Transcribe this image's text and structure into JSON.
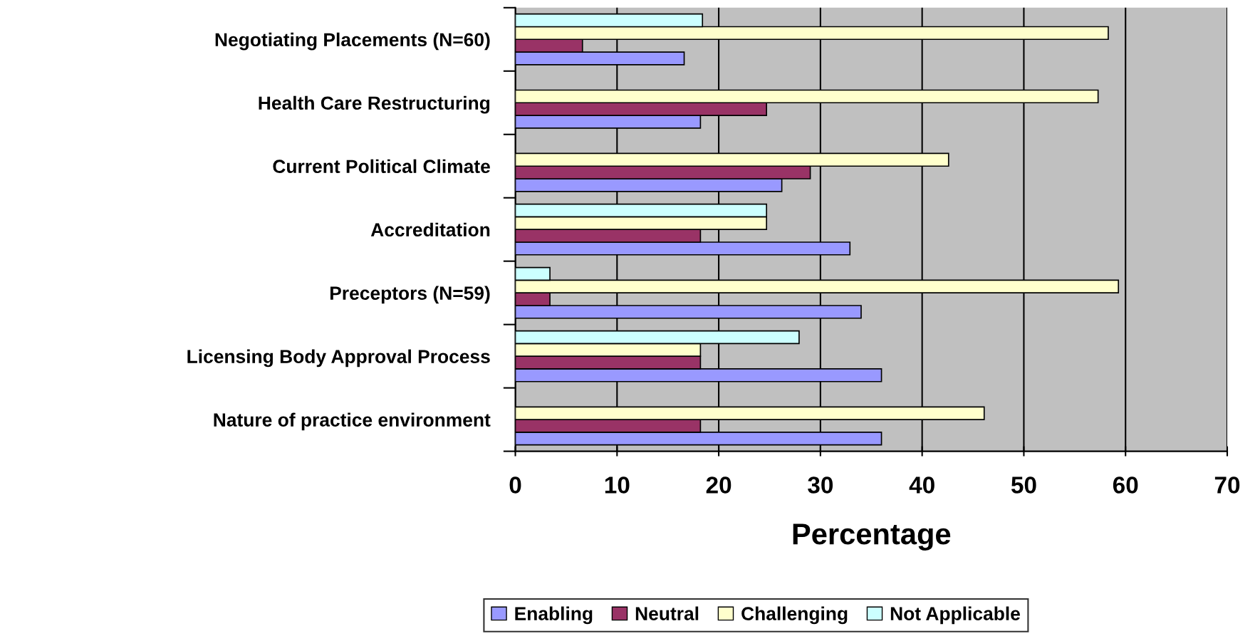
{
  "chart_data": {
    "type": "bar",
    "orientation": "horizontal",
    "xlabel": "Percentage",
    "categories": [
      "Negotiating Placements (N=60)",
      "Health Care Restructuring",
      "Current Political Climate",
      "Accreditation",
      "Preceptors (N=59)",
      "Licensing Body Approval Process",
      "Nature of practice environment"
    ],
    "series": [
      {
        "name": "Enabling",
        "color": "#9999ff",
        "values": [
          16.6,
          18.2,
          26.2,
          32.9,
          34.0,
          36.0,
          36.0
        ]
      },
      {
        "name": "Neutral",
        "color": "#993366",
        "values": [
          6.6,
          24.7,
          29,
          18.2,
          3.4,
          18.2,
          18.2
        ]
      },
      {
        "name": "Challenging",
        "color": "#ffffcc",
        "values": [
          58.3,
          57.3,
          42.6,
          24.7,
          59.3,
          18.2,
          46.1
        ]
      },
      {
        "name": "Not Applicable",
        "color": "#ccffff",
        "values": [
          18.4,
          null,
          null,
          24.7,
          3.4,
          27.9,
          null
        ]
      }
    ],
    "xlim": [
      0,
      70
    ],
    "xticks": [
      0,
      10,
      20,
      30,
      40,
      50,
      60,
      70
    ],
    "grid": "x",
    "legend": "bottom"
  }
}
